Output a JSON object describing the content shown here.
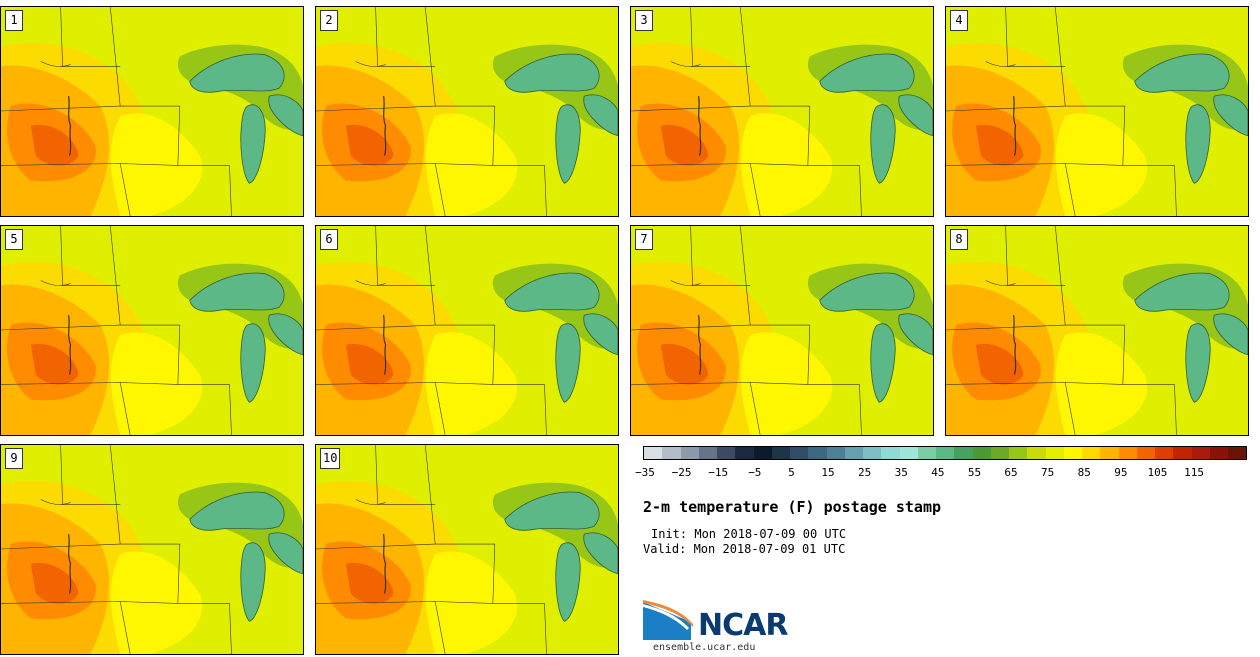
{
  "stamps": [
    {
      "label": "1"
    },
    {
      "label": "2"
    },
    {
      "label": "3"
    },
    {
      "label": "4"
    },
    {
      "label": "5"
    },
    {
      "label": "6"
    },
    {
      "label": "7"
    },
    {
      "label": "8"
    },
    {
      "label": "9"
    },
    {
      "label": "10"
    }
  ],
  "colorbar": {
    "colors": [
      "#d9dde4",
      "#b4bcc7",
      "#8e99aa",
      "#66748a",
      "#3c4b63",
      "#1c2a40",
      "#0d1a2c",
      "#203448",
      "#2f4e66",
      "#3d6680",
      "#4f7f96",
      "#66a0ae",
      "#7cc0c4",
      "#8fd9d6",
      "#a0e6d8",
      "#7ccda6",
      "#5cb886",
      "#46a060",
      "#4a9a38",
      "#6aaa28",
      "#98c616",
      "#c8dc08",
      "#e4ee00",
      "#fff700",
      "#ffd800",
      "#ffb400",
      "#ff8c00",
      "#f26400",
      "#e03e00",
      "#c22400",
      "#a81a0a",
      "#8a1208",
      "#6a1408"
    ],
    "tick_labels": [
      "−35",
      "−25",
      "−15",
      "−5",
      "5",
      "15",
      "25",
      "35",
      "45",
      "55",
      "65",
      "75",
      "85",
      "95",
      "105",
      "115"
    ]
  },
  "title": "2-m temperature (F) postage stamp",
  "init_text": "Init: Mon 2018-07-09 00 UTC",
  "valid_text": "Valid: Mon 2018-07-09 01 UTC",
  "logo_text": "NCAR",
  "site_url": "ensemble.ucar.edu"
}
